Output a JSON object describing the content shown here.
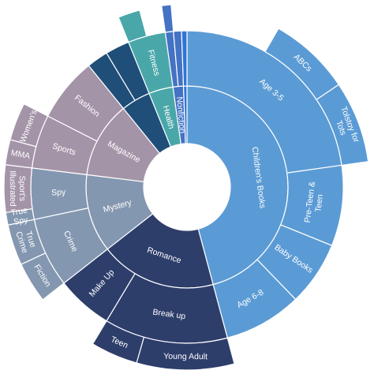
{
  "chart_data": {
    "type": "sunburst",
    "title": "",
    "colors": {
      "childrens": "#5B9BD5",
      "romance": "#2E3E6B",
      "mystery": "#8497B0",
      "magazine": "#A494A8",
      "teal": "#4AA7A9",
      "navy": "#1F4E79",
      "blue": "#2E75D6",
      "slate": "#4472C4"
    },
    "rings": [
      [
        {
          "label": "Children's Books",
          "start": 0,
          "end": 165,
          "color": "childrens"
        },
        {
          "label": "Romance",
          "start": 165,
          "end": 232,
          "color": "romance"
        },
        {
          "label": "Mystery",
          "start": 232,
          "end": 277,
          "color": "mystery"
        },
        {
          "label": "Magazine",
          "start": 277,
          "end": 321,
          "color": "magazine"
        },
        {
          "label": "",
          "start": 321,
          "end": 338,
          "color": "navy"
        },
        {
          "label": "Health",
          "start": 338,
          "end": 352,
          "color": "teal"
        },
        {
          "label": "Nonfiction",
          "start": 352,
          "end": 358,
          "color": "slate"
        },
        {
          "label": "",
          "start": 358,
          "end": 360,
          "color": "blue"
        }
      ],
      [
        {
          "label": "Age 3-5",
          "start": 0,
          "end": 82,
          "color": "childrens"
        },
        {
          "label": "Pre-Teen & Teen",
          "start": 82,
          "end": 112,
          "color": "childrens"
        },
        {
          "label": "Baby Books",
          "start": 112,
          "end": 136,
          "color": "childrens"
        },
        {
          "label": "Age 6-8",
          "start": 136,
          "end": 165,
          "color": "childrens"
        },
        {
          "label": "Break up",
          "start": 165,
          "end": 211,
          "color": "romance"
        },
        {
          "label": "Make Up",
          "start": 211,
          "end": 232,
          "color": "romance"
        },
        {
          "label": "Crime",
          "start": 232,
          "end": 258,
          "color": "mystery"
        },
        {
          "label": "Spy",
          "start": 258,
          "end": 277,
          "color": "mystery"
        },
        {
          "label": "Sports",
          "start": 277,
          "end": 297,
          "color": "magazine"
        },
        {
          "label": "Fashion",
          "start": 297,
          "end": 321,
          "color": "magazine"
        },
        {
          "label": "",
          "start": 321,
          "end": 329,
          "color": "navy"
        },
        {
          "label": "",
          "start": 329,
          "end": 338,
          "color": "navy"
        },
        {
          "label": "Fitness",
          "start": 338,
          "end": 352,
          "color": "teal"
        },
        {
          "label": "",
          "start": 352,
          "end": 355,
          "color": "slate"
        },
        {
          "label": "",
          "start": 355,
          "end": 358,
          "color": "slate"
        },
        {
          "label": "",
          "start": 358,
          "end": 360,
          "color": "blue"
        }
      ],
      [
        {
          "label": "ABCs",
          "start": 30,
          "end": 56,
          "color": "childrens"
        },
        {
          "label": "Tolstoy for Tots",
          "start": 56,
          "end": 82,
          "color": "childrens"
        },
        {
          "label": "Young Adult",
          "start": 165,
          "end": 196,
          "color": "romance"
        },
        {
          "label": "Teen",
          "start": 196,
          "end": 211,
          "color": "romance"
        },
        {
          "label": "Fiction",
          "start": 232,
          "end": 245,
          "color": "mystery"
        },
        {
          "label": "True Crime",
          "start": 245,
          "end": 258,
          "color": "mystery"
        },
        {
          "label": "True Spy",
          "start": 258,
          "end": 262,
          "color": "mystery"
        },
        {
          "label": "Sport's Illustrated",
          "start": 262,
          "end": 277,
          "color": "magazine"
        },
        {
          "label": "MMA",
          "start": 277,
          "end": 285,
          "color": "magazine"
        },
        {
          "label": "Women's",
          "start": 285,
          "end": 297,
          "color": "magazine"
        },
        {
          "label": "",
          "start": 338,
          "end": 345,
          "color": "teal"
        },
        {
          "label": "",
          "start": 352,
          "end": 355,
          "color": "slate"
        }
      ]
    ]
  }
}
